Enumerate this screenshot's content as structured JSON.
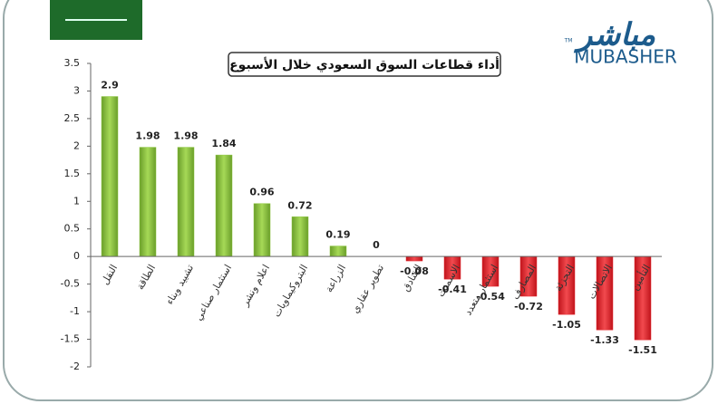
{
  "chart_data": {
    "type": "bar",
    "title": "أداء قطاعات السوق السعودي خلال الأسبوع",
    "logo": {
      "arabic": "مباشر",
      "latin": "MUBASHER",
      "mark": "TM"
    },
    "categories": [
      "النقل",
      "الطاقة",
      "تشييد وبناء",
      "استثمار صناعي",
      "اعلام ونشر",
      "البتروكيماويات",
      "الزراعة",
      "تطوير عقاري",
      "الفنادق",
      "الاسمنت",
      "استثمار متعدد",
      "المصارف",
      "التجزئة",
      "الاتصالات",
      "التأمين"
    ],
    "values": [
      2.9,
      1.98,
      1.98,
      1.84,
      0.96,
      0.72,
      0.19,
      0,
      -0.08,
      -0.41,
      -0.54,
      -0.72,
      -1.05,
      -1.33,
      -1.51
    ],
    "positive_color": "#8cc63e",
    "negative_color": "#e8242b",
    "ylim": [
      -2,
      3.5
    ],
    "yticks": [
      -2,
      -1.5,
      -1,
      -0.5,
      0,
      0.5,
      1,
      1.5,
      2,
      2.5,
      3,
      3.5
    ]
  }
}
